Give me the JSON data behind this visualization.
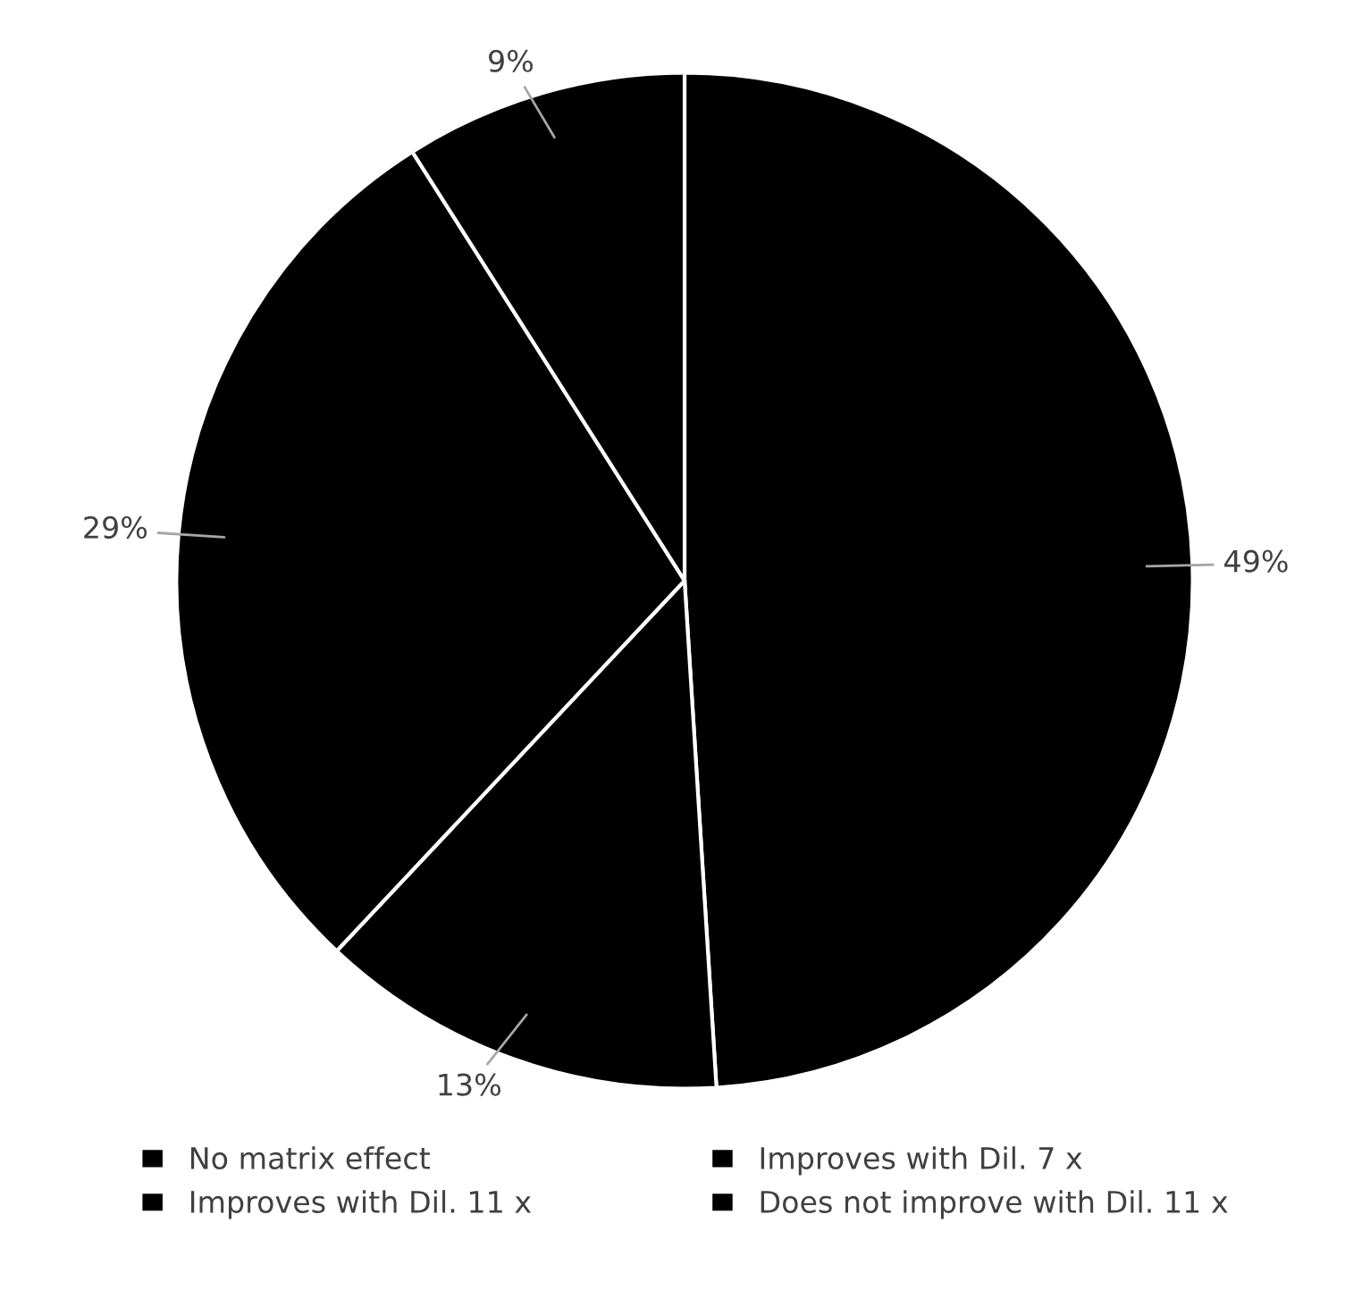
{
  "chart_data": {
    "type": "pie",
    "categories": [
      "No matrix effect",
      "Improves with Dil. 7 x",
      "Improves with Dil. 11 x",
      "Does not improve with Dil. 11 x"
    ],
    "values": [
      49,
      13,
      29,
      9
    ],
    "value_labels": [
      "49%",
      "13%",
      "29%",
      "9%"
    ],
    "colors": [
      "#000000",
      "#000000",
      "#000000",
      "#000000"
    ],
    "legend": "bottom"
  }
}
